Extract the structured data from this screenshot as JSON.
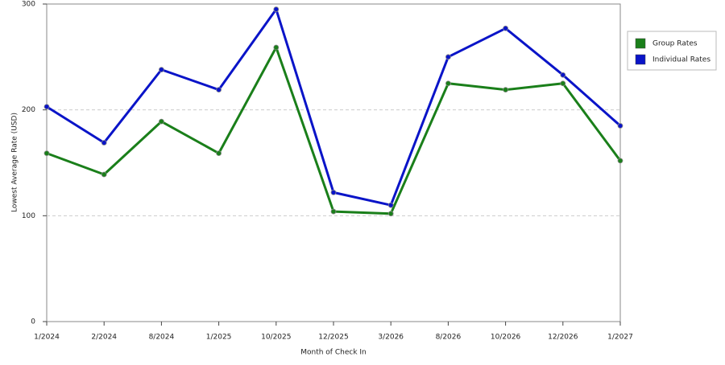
{
  "chart_data": {
    "type": "line",
    "x_label": "Month of Check In",
    "y_label": "Lowest Average Rate (USD)",
    "categories": [
      "1/2024",
      "2/2024",
      "8/2024",
      "1/2025",
      "10/2025",
      "12/2025",
      "3/2026",
      "8/2026",
      "10/2026",
      "12/2026",
      "1/2027"
    ],
    "series": [
      {
        "name": "Group Rates",
        "color": "#1a7f1a",
        "values": [
          159,
          139,
          189,
          159,
          259,
          104,
          102,
          225,
          219,
          225,
          152
        ]
      },
      {
        "name": "Individual Rates",
        "color": "#0a14c8",
        "values": [
          203,
          169,
          238,
          219,
          295,
          122,
          110,
          250,
          277,
          233,
          185
        ]
      }
    ],
    "ylim": [
      0,
      300
    ],
    "yticks": [
      0,
      100,
      200,
      300
    ],
    "grid": true,
    "legend": "top-right"
  }
}
